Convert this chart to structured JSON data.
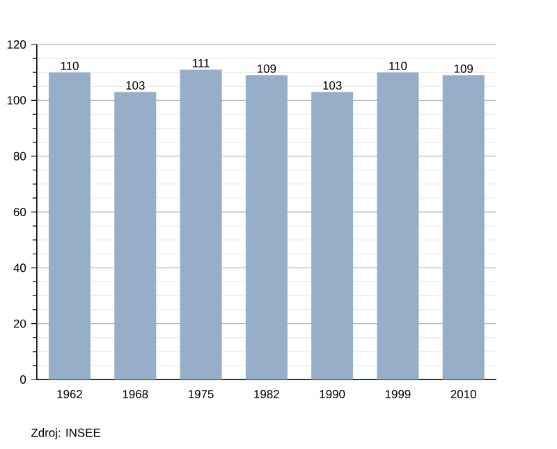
{
  "chart_data": {
    "type": "bar",
    "categories": [
      "1962",
      "1968",
      "1975",
      "1982",
      "1990",
      "1999",
      "2010"
    ],
    "values": [
      110,
      103,
      111,
      109,
      103,
      110,
      109
    ],
    "color": "#97aec8",
    "ylim": [
      0,
      120
    ],
    "yticks": [
      0,
      20,
      40,
      60,
      80,
      100,
      120
    ],
    "grid": "y",
    "data_labels": true,
    "annotations": [
      "Zdroj: INSEE"
    ]
  }
}
